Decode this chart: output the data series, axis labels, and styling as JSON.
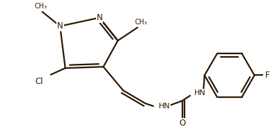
{
  "bg": "#ffffff",
  "bc": "#2b1800",
  "lw": 1.6,
  "fs": 7.5,
  "figsize": [
    3.95,
    1.83
  ],
  "dpi": 100,
  "xlim": [
    0,
    395
  ],
  "ylim": [
    0,
    183
  ]
}
